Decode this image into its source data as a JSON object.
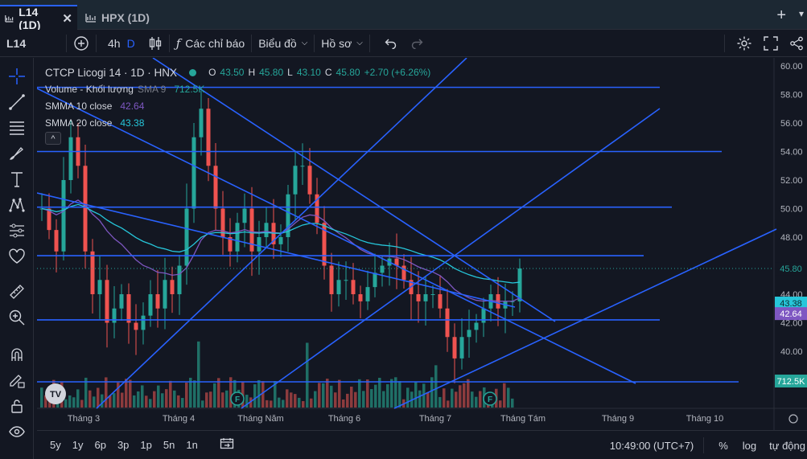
{
  "tabs": [
    {
      "label": "L14 (1D)",
      "active": true
    },
    {
      "label": "HPX (1D)",
      "active": false
    }
  ],
  "toolbar": {
    "symbol": "L14",
    "interval": "4h",
    "interval_d": "D",
    "indicators_label": "Các chỉ báo",
    "chart_label": "Biểu đồ",
    "profile_label": "Hồ sơ"
  },
  "legend": {
    "title": "CTCP Licogi 14 · 1D · HNX",
    "ohlc": {
      "o_label": "O",
      "o": "43.50",
      "h_label": "H",
      "h": "45.80",
      "l_label": "L",
      "l": "43.10",
      "c_label": "C",
      "c": "45.80",
      "change": "+2.70 (+6.26%)"
    },
    "volume": {
      "label": "Volume - Khối lượng",
      "ma": "SMA 9",
      "value": "712.5K"
    },
    "smma10": {
      "label": "SMMA 10 close",
      "value": "42.64"
    },
    "smma20": {
      "label": "SMMA 20 close",
      "value": "43.38"
    }
  },
  "price_axis": [
    "60.00",
    "58.00",
    "56.00",
    "54.00",
    "52.00",
    "50.00",
    "48.00",
    "46.00",
    "44.00",
    "42.00",
    "40.00"
  ],
  "price_badges": {
    "last": "45.80",
    "smma20": "43.38",
    "smma10": "42.64",
    "volume": "712.5K"
  },
  "time_axis": [
    "Tháng 3",
    "Tháng 4",
    "Tháng Năm",
    "Tháng 6",
    "Tháng 7",
    "Tháng Tám",
    "Tháng 9",
    "Tháng 10"
  ],
  "range_buttons": [
    "5y",
    "1y",
    "6p",
    "3p",
    "1p",
    "5n",
    "1n"
  ],
  "clock": "10:49:00 (UTC+7)",
  "scale_options": {
    "percent": "%",
    "log": "log",
    "auto": "tự động"
  },
  "colors": {
    "up": "#26a69a",
    "down": "#ef5350",
    "line": "#2962ff",
    "smma10": "#7e57c2",
    "smma20": "#26c6da",
    "bg": "#131722"
  },
  "watermark": "TV",
  "earnings_marker": "F",
  "collapse_glyph": "^"
}
